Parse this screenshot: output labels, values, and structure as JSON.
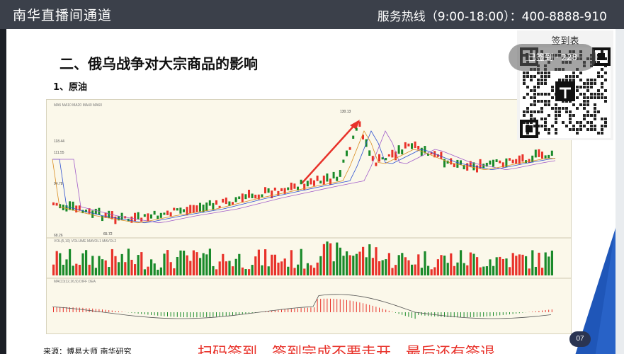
{
  "header": {
    "title": "南华直播间通道",
    "hotline": "服务热线（9:00-18:00）：400-8888-910"
  },
  "slide": {
    "heading": "二、俄乌战争对大宗商品的影响",
    "subheading": "1、原油",
    "source": "来源：博易大师 南华研究",
    "notice": "扫码签到，签到完成不要走开，最后还有签退",
    "page_number": "07"
  },
  "signin": {
    "label": "签到表",
    "pill_text": "已签到 · 228"
  },
  "chart_labels": {
    "peak_label": "130.13",
    "low_label": "65.72",
    "y_ticks": [
      "118.44",
      "111.55",
      "94.78",
      "68.26"
    ]
  },
  "colors": {
    "up": "#e8322a",
    "down": "#1a8a2a",
    "accent_blue": "#1f56b8"
  }
}
